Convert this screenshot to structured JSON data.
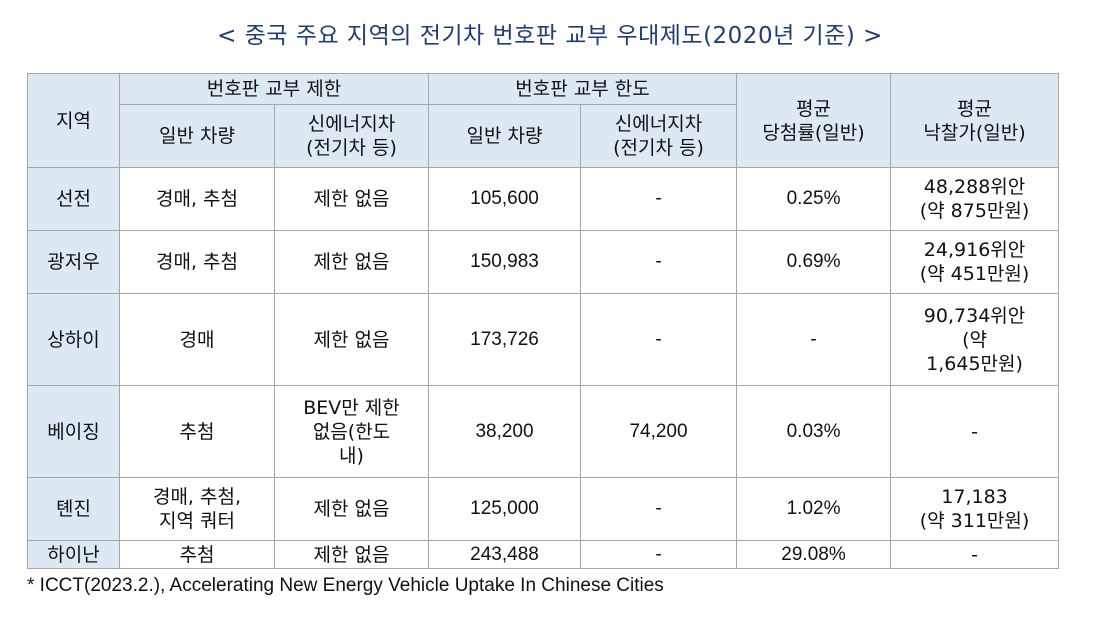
{
  "title": "< 중국 주요 지역의 전기차 번호판 교부 우대제도(2020년 기준) >",
  "header": {
    "region": "지역",
    "limit_group": "번호판 교부 제한",
    "quota_group": "번호판 교부 한도",
    "general_vehicle": "일반 차량",
    "nev_line1": "신에너지차",
    "nev_line2": "(전기차 등)",
    "win_rate_line1": "평균",
    "win_rate_line2": "당첨률(일반)",
    "price_line1": "평균",
    "price_line2": "낙찰가(일반)"
  },
  "rows": [
    {
      "region": "선전",
      "limit_general": [
        "경매, 추첨"
      ],
      "limit_nev": [
        "제한 없음"
      ],
      "quota_general": "105,600",
      "quota_nev": "-",
      "win_rate": "0.25%",
      "price": [
        "48,288위안",
        "(약 875만원)"
      ]
    },
    {
      "region": "광저우",
      "limit_general": [
        "경매, 추첨"
      ],
      "limit_nev": [
        "제한 없음"
      ],
      "quota_general": "150,983",
      "quota_nev": "-",
      "win_rate": "0.69%",
      "price": [
        "24,916위안",
        "(약 451만원)"
      ]
    },
    {
      "region": "상하이",
      "limit_general": [
        "경매"
      ],
      "limit_nev": [
        "제한 없음"
      ],
      "quota_general": "173,726",
      "quota_nev": "-",
      "win_rate": "-",
      "price": [
        "90,734위안",
        "(약",
        "1,645만원)"
      ]
    },
    {
      "region": "베이징",
      "limit_general": [
        "추첨"
      ],
      "limit_nev": [
        "BEV만 제한",
        "없음(한도",
        "내)"
      ],
      "quota_general": "38,200",
      "quota_nev": "74,200",
      "win_rate": "0.03%",
      "price": [
        "-"
      ]
    },
    {
      "region": "톈진",
      "limit_general": [
        "경매, 추첨,",
        "지역 쿼터"
      ],
      "limit_nev": [
        "제한 없음"
      ],
      "quota_general": "125,000",
      "quota_nev": "-",
      "win_rate": "1.02%",
      "price": [
        "17,183",
        "(약 311만원)"
      ]
    },
    {
      "region": "하이난",
      "limit_general": [
        "추첨"
      ],
      "limit_nev": [
        "제한 없음"
      ],
      "quota_general": "243,488",
      "quota_nev": "-",
      "win_rate": "29.08%",
      "price": [
        "-"
      ]
    }
  ],
  "footnote": "* ICCT(2023.2.), Accelerating New Energy Vehicle Uptake In Chinese Cities"
}
